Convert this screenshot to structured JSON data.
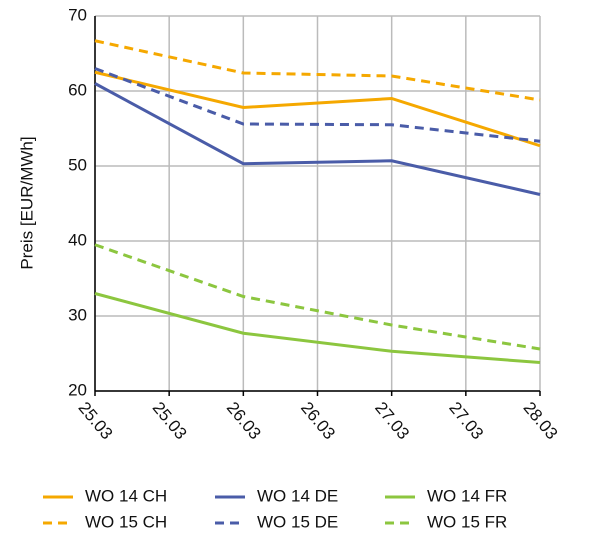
{
  "chart_data": {
    "type": "line",
    "y_label": "Preis [EUR/MWh]",
    "x": [
      25,
      26,
      27,
      28
    ],
    "xlim": [
      25,
      28
    ],
    "xticks": [
      {
        "value": 25,
        "label": "25.03"
      },
      {
        "value": 25.5,
        "label": "25.03"
      },
      {
        "value": 26,
        "label": "26.03"
      },
      {
        "value": 26.5,
        "label": "26.03"
      },
      {
        "value": 27,
        "label": "27.03"
      },
      {
        "value": 27.5,
        "label": "27.03"
      },
      {
        "value": 28,
        "label": "28.03"
      }
    ],
    "ylim": [
      20,
      70
    ],
    "yticks": [
      20,
      30,
      40,
      50,
      60,
      70
    ],
    "grid": true,
    "legend": "bottom",
    "series": [
      {
        "name": "WO 14 CH",
        "color": "#f5a800",
        "style": "solid",
        "values": [
          62.5,
          57.8,
          59.0,
          52.7
        ]
      },
      {
        "name": "WO 14 DE",
        "color": "#4a5ca8",
        "style": "solid",
        "values": [
          61.0,
          50.3,
          50.7,
          46.2
        ]
      },
      {
        "name": "WO 14 FR",
        "color": "#8cc63f",
        "style": "solid",
        "values": [
          33.0,
          27.7,
          25.3,
          23.8
        ]
      },
      {
        "name": "WO 15 CH",
        "color": "#f5a800",
        "style": "dashed",
        "values": [
          66.7,
          62.4,
          62.0,
          58.8
        ]
      },
      {
        "name": "WO 15 DE",
        "color": "#4a5ca8",
        "style": "dashed",
        "values": [
          63.0,
          55.6,
          55.5,
          53.3
        ]
      },
      {
        "name": "WO 15 FR",
        "color": "#8cc63f",
        "style": "dashed",
        "values": [
          39.5,
          32.6,
          28.8,
          25.6
        ]
      }
    ]
  }
}
